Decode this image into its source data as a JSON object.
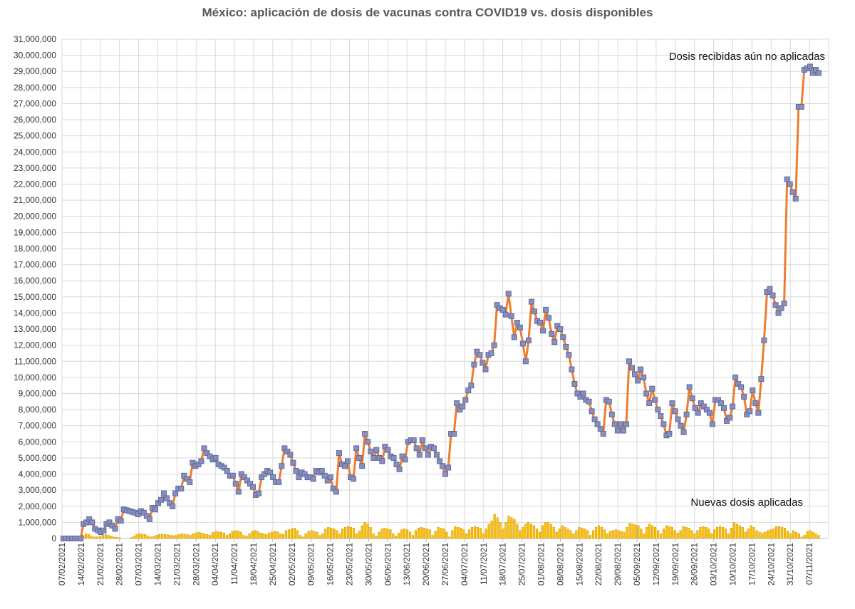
{
  "chart_data": {
    "type": "line",
    "title": "México: aplicación de dosis de vacunas contra COVID19 vs. dosis disponibles",
    "xlabel": "",
    "ylabel": "",
    "ylim": [
      0,
      31000000
    ],
    "grid": true,
    "y_ticks": [
      "0",
      "1,000,000",
      "2,000,000",
      "3,000,000",
      "4,000,000",
      "5,000,000",
      "6,000,000",
      "7,000,000",
      "8,000,000",
      "9,000,000",
      "10,000,000",
      "11,000,000",
      "12,000,000",
      "13,000,000",
      "14,000,000",
      "15,000,000",
      "16,000,000",
      "17,000,000",
      "18,000,000",
      "19,000,000",
      "20,000,000",
      "21,000,000",
      "22,000,000",
      "23,000,000",
      "24,000,000",
      "25,000,000",
      "26,000,000",
      "27,000,000",
      "28,000,000",
      "29,000,000",
      "30,000,000",
      "31,000,000"
    ],
    "x_ticks": [
      "07/02/2021",
      "14/02/2021",
      "21/02/2021",
      "28/02/2021",
      "07/03/2021",
      "14/03/2021",
      "21/03/2021",
      "28/03/2021",
      "04/04/2021",
      "11/04/2021",
      "18/04/2021",
      "25/04/2021",
      "02/05/2021",
      "09/05/2021",
      "16/05/2021",
      "23/05/2021",
      "30/05/2021",
      "06/06/2021",
      "13/06/2021",
      "20/06/2021",
      "27/06/2021",
      "04/07/2021",
      "11/07/2021",
      "18/07/2021",
      "25/07/2021",
      "01/08/2021",
      "08/08/2021",
      "15/08/2021",
      "22/08/2021",
      "29/08/2021",
      "05/09/2021",
      "12/09/2021",
      "19/09/2021",
      "26/09/2021",
      "03/10/2021",
      "10/10/2021",
      "17/10/2021",
      "24/10/2021",
      "31/10/2021",
      "07/11/2021"
    ],
    "series": [
      {
        "name": "Dosis recibidas aún no aplicadas",
        "type": "line",
        "color": "#ED7D31",
        "marker_color": "#8A8FB8",
        "values": [
          0,
          0,
          0,
          0,
          0,
          0,
          0,
          900000,
          1000000,
          1200000,
          1000000,
          600000,
          500000,
          400000,
          500000,
          900000,
          1000000,
          800000,
          600000,
          1200000,
          1100000,
          1800000,
          1750000,
          1700000,
          1650000,
          1600000,
          1500000,
          1700000,
          1600000,
          1400000,
          1200000,
          1900000,
          1800000,
          2200000,
          2400000,
          2800000,
          2500000,
          2200000,
          2000000,
          2800000,
          3100000,
          3100000,
          3900000,
          3700000,
          3500000,
          4700000,
          4500000,
          4600000,
          4800000,
          5600000,
          5300000,
          5100000,
          4900000,
          5000000,
          4600000,
          4500000,
          4400000,
          4200000,
          3900000,
          3900000,
          3400000,
          2900000,
          4000000,
          3800000,
          3600000,
          3400000,
          3200000,
          2700000,
          2800000,
          3800000,
          4000000,
          4200000,
          4100000,
          3800000,
          3500000,
          3500000,
          4500000,
          5600000,
          5400000,
          5200000,
          4700000,
          4200000,
          3800000,
          4100000,
          4000000,
          3800000,
          3800000,
          3700000,
          4200000,
          4100000,
          4200000,
          3900000,
          3600000,
          3800000,
          3100000,
          2900000,
          5300000,
          4600000,
          4500000,
          4800000,
          3800000,
          3700000,
          5600000,
          5000000,
          4500000,
          6500000,
          6000000,
          5400000,
          5000000,
          5500000,
          5000000,
          4800000,
          5700000,
          5500000,
          5100000,
          5000000,
          4600000,
          4300000,
          5100000,
          4900000,
          6000000,
          6100000,
          6100000,
          5600000,
          5200000,
          6100000,
          5600000,
          5200000,
          5700000,
          5600000,
          5200000,
          4800000,
          4500000,
          4000000,
          4400000,
          6500000,
          6500000,
          8400000,
          8000000,
          8200000,
          8600000,
          9200000,
          9500000,
          10800000,
          11600000,
          11400000,
          10900000,
          10500000,
          11400000,
          11500000,
          12000000,
          14500000,
          14300000,
          14200000,
          13900000,
          15200000,
          13800000,
          12500000,
          13400000,
          13100000,
          12100000,
          11000000,
          12300000,
          14700000,
          14100000,
          13500000,
          13400000,
          12900000,
          14200000,
          13700000,
          12700000,
          12200000,
          13200000,
          13000000,
          12500000,
          11900000,
          11400000,
          10500000,
          9600000,
          9000000,
          8800000,
          9000000,
          8600000,
          8500000,
          7900000,
          7400000,
          7100000,
          6800000,
          6500000,
          8600000,
          8500000,
          7700000,
          7100000,
          6700000,
          7100000,
          6700000,
          7100000,
          11000000,
          10600000,
          10200000,
          9800000,
          10500000,
          10000000,
          9000000,
          8400000,
          9300000,
          8600000,
          8000000,
          7600000,
          7100000,
          6400000,
          6500000,
          8400000,
          7900000,
          7400000,
          7000000,
          6600000,
          7700000,
          9400000,
          8700000,
          8100000,
          7800000,
          8400000,
          8200000,
          8000000,
          7800000,
          7100000,
          8600000,
          8600000,
          8400000,
          8100000,
          7300000,
          7500000,
          8200000,
          10000000,
          9600000,
          9400000,
          8800000,
          7700000,
          7900000,
          9200000,
          8400000,
          7800000,
          9900000,
          12300000,
          15300000,
          15500000,
          15100000,
          14500000,
          14000000,
          14300000,
          14600000,
          22300000,
          22000000,
          21500000,
          21100000,
          26800000,
          26800000,
          29100000,
          29200000,
          29300000,
          28900000,
          29100000,
          28900000
        ]
      },
      {
        "name": "Nuevas dosis aplicadas",
        "type": "bar",
        "color": "#FFC000",
        "values": [
          0,
          0,
          0,
          0,
          0,
          0,
          100000,
          200000,
          300000,
          250000,
          150000,
          100000,
          100000,
          150000,
          200000,
          250000,
          200000,
          150000,
          100000,
          80000,
          50000,
          0,
          0,
          0,
          50000,
          150000,
          250000,
          300000,
          280000,
          250000,
          150000,
          100000,
          120000,
          200000,
          250000,
          280000,
          260000,
          240000,
          200000,
          180000,
          200000,
          250000,
          300000,
          280000,
          250000,
          200000,
          300000,
          350000,
          400000,
          350000,
          300000,
          250000,
          200000,
          380000,
          450000,
          420000,
          400000,
          350000,
          200000,
          300000,
          450000,
          500000,
          480000,
          400000,
          200000,
          150000,
          300000,
          450000,
          500000,
          450000,
          350000,
          300000,
          250000,
          350000,
          400000,
          450000,
          420000,
          300000,
          250000,
          500000,
          550000,
          600000,
          650000,
          500000,
          200000,
          100000,
          300000,
          450000,
          500000,
          450000,
          400000,
          200000,
          300000,
          600000,
          700000,
          650000,
          600000,
          500000,
          300000,
          600000,
          700000,
          750000,
          700000,
          650000,
          300000,
          450000,
          800000,
          1000000,
          900000,
          700000,
          300000,
          150000,
          400000,
          600000,
          650000,
          600000,
          550000,
          300000,
          150000,
          350000,
          550000,
          600000,
          550000,
          400000,
          200000,
          500000,
          650000,
          700000,
          650000,
          600000,
          550000,
          200000,
          450000,
          700000,
          650000,
          600000,
          400000,
          100000,
          500000,
          750000,
          700000,
          650000,
          550000,
          300000,
          550000,
          700000,
          750000,
          700000,
          650000,
          300000,
          600000,
          900000,
          1100000,
          1500000,
          1300000,
          1000000,
          600000,
          1000000,
          1400000,
          1300000,
          1200000,
          900000,
          500000,
          700000,
          900000,
          1000000,
          900000,
          800000,
          600000,
          400000,
          800000,
          1000000,
          1000000,
          900000,
          700000,
          400000,
          600000,
          800000,
          700000,
          600000,
          500000,
          300000,
          500000,
          700000,
          650000,
          600000,
          500000,
          200000,
          500000,
          700000,
          800000,
          700000,
          550000,
          300000,
          450000,
          500000,
          550000,
          500000,
          450000,
          400000,
          700000,
          950000,
          900000,
          850000,
          800000,
          600000,
          300000,
          700000,
          900000,
          800000,
          700000,
          500000,
          300000,
          600000,
          800000,
          750000,
          700000,
          500000,
          350000,
          500000,
          750000,
          700000,
          650000,
          500000,
          300000,
          500000,
          700000,
          750000,
          700000,
          600000,
          300000,
          550000,
          700000,
          750000,
          700000,
          600000,
          300000,
          650000,
          1000000,
          900000,
          800000,
          700000,
          400000,
          600000,
          800000,
          700000,
          500000,
          400000,
          350000,
          400000,
          500000,
          550000,
          600000,
          750000,
          750000,
          700000,
          650000,
          450000,
          300000,
          500000,
          400000,
          300000,
          100000,
          200000,
          450000,
          500000,
          400000,
          300000,
          200000
        ]
      }
    ],
    "annotations": [
      "Dosis recibidas aún no aplicadas",
      "Nuevas dosis aplicadas"
    ]
  }
}
